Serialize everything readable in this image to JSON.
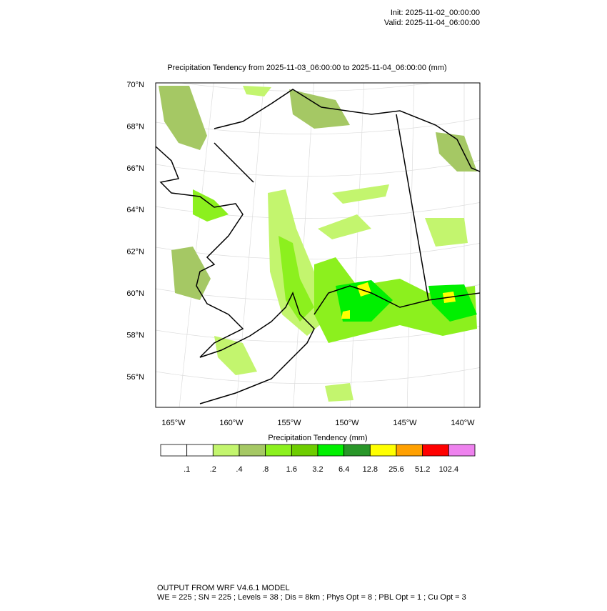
{
  "header": {
    "init": "Init: 2025-11-02_00:00:00",
    "valid": "Valid: 2025-11-04_06:00:00"
  },
  "map": {
    "title": "Precipitation Tendency from 2025-11-03_06:00:00 to 2025-11-04_06:00:00   (mm)",
    "lat_labels": [
      "70°N",
      "68°N",
      "66°N",
      "64°N",
      "62°N",
      "60°N",
      "58°N",
      "56°N"
    ],
    "lon_labels": [
      "165°W",
      "160°W",
      "155°W",
      "150°W",
      "145°W",
      "140°W"
    ]
  },
  "colorbar": {
    "title": "Precipitation Tendency  (mm)",
    "colors": [
      "#ffffff",
      "#ffffff",
      "#c3f56e",
      "#a5c864",
      "#8cf01e",
      "#6ecd00",
      "#00f000",
      "#289628",
      "#ffff00",
      "#ffa000",
      "#ff0000",
      "#ee82ee"
    ],
    "labels": [
      ".1",
      ".2",
      ".4",
      ".8",
      "1.6",
      "3.2",
      "6.4",
      "12.8",
      "25.6",
      "51.2",
      "102.4"
    ]
  },
  "footer": {
    "line1": "OUTPUT FROM WRF V4.6.1 MODEL",
    "line2": "WE = 225 ; SN = 225 ; Levels = 38 ; Dis = 8km ; Phys Opt = 8 ; PBL Opt = 1 ; Cu Opt = 3"
  }
}
